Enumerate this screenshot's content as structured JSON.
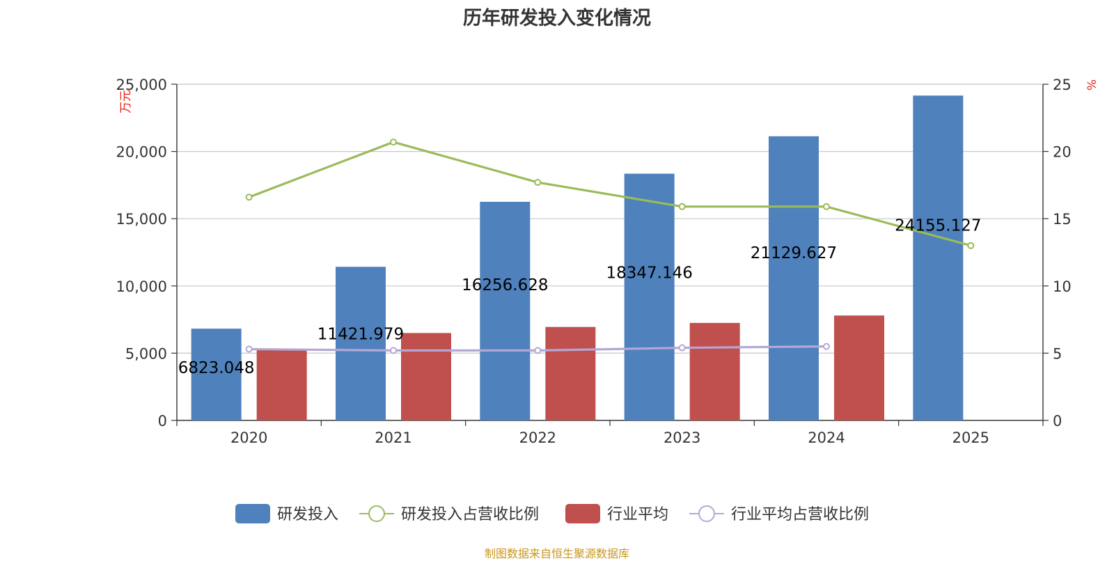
{
  "title": "历年研发投入变化情况",
  "source": "制图数据来自恒生聚源数据库",
  "colors": {
    "rd_bar": "#4f81bd",
    "industry_bar": "#c0504d",
    "rd_ratio_line": "#9bbb59",
    "industry_ratio_line": "#b4a7d6",
    "grid": "#c8c8c8",
    "axis": "#333333",
    "unit": "#e8211c"
  },
  "chart_data": {
    "type": "bar",
    "title": "历年研发投入变化情况",
    "categories": [
      "2020",
      "2021",
      "2022",
      "2023",
      "2024",
      "2025"
    ],
    "y_left": {
      "label": "万元",
      "range": [
        0,
        25000
      ],
      "ticks": [
        "0",
        "5,000",
        "10,000",
        "15,000",
        "20,000",
        "25,000"
      ],
      "tick_values": [
        0,
        5000,
        10000,
        15000,
        20000,
        25000
      ]
    },
    "y_right": {
      "label": "%",
      "range": [
        0,
        25
      ],
      "ticks": [
        "0",
        "5",
        "10",
        "15",
        "20",
        "25"
      ],
      "tick_values": [
        0,
        5,
        10,
        15,
        20,
        25
      ]
    },
    "grid": true,
    "legend_position": "bottom-center",
    "series": [
      {
        "name": "研发投入",
        "kind": "bar",
        "axis": "left",
        "color": "#4f81bd",
        "values": [
          6823.048,
          11421.979,
          16256.628,
          18347.146,
          21129.627,
          24155.127
        ],
        "labels": [
          "6823.048",
          "11421.979",
          "16256.628",
          "18347.146",
          "21129.627",
          "24155.127"
        ]
      },
      {
        "name": "研发投入占营收比例",
        "kind": "line",
        "axis": "right",
        "color": "#9bbb59",
        "values": [
          16.6,
          20.7,
          17.7,
          15.9,
          15.9,
          13.0
        ]
      },
      {
        "name": "行业平均",
        "kind": "bar",
        "axis": "left",
        "color": "#c0504d",
        "values": [
          5300,
          6500,
          6950,
          7250,
          7800,
          null
        ]
      },
      {
        "name": "行业平均占营收比例",
        "kind": "line",
        "axis": "right",
        "color": "#b4a7d6",
        "values": [
          5.3,
          5.2,
          5.2,
          5.4,
          5.5,
          null
        ]
      }
    ]
  }
}
